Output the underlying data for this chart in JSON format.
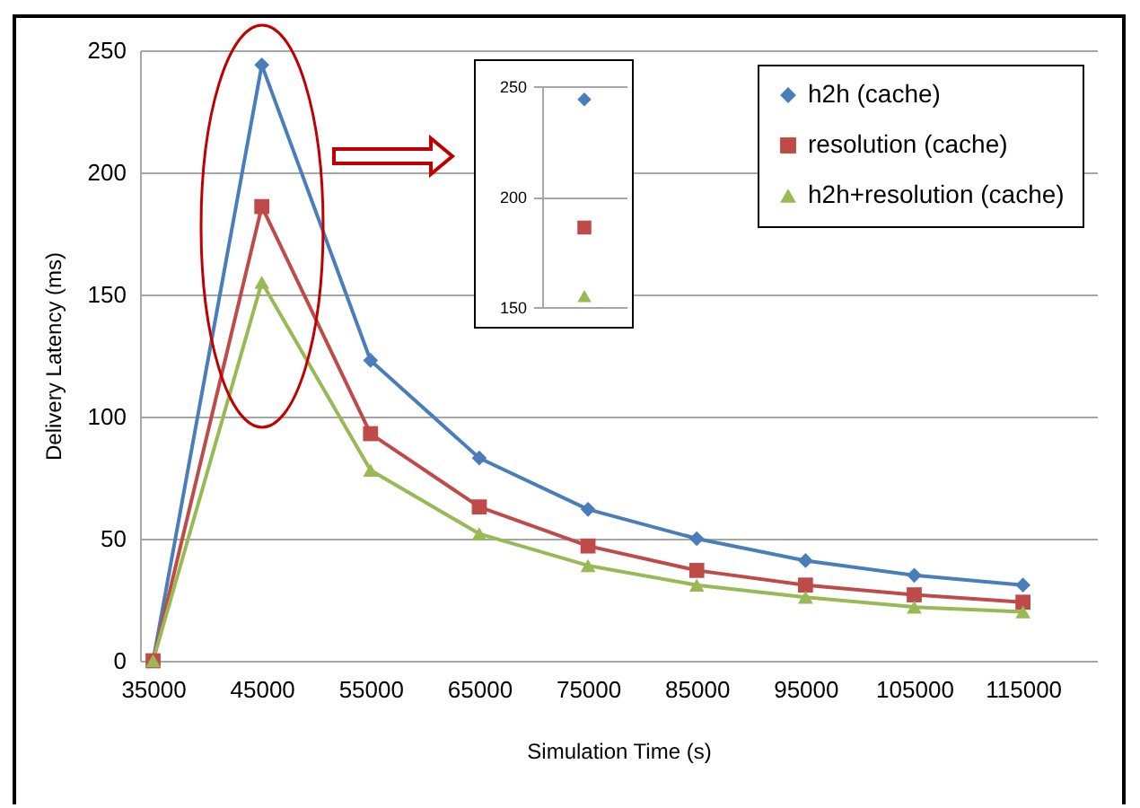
{
  "chart_data": [
    {
      "type": "line",
      "xlabel": "Simulation Time (s)",
      "ylabel": "Delivery Latency (ms)",
      "x": [
        35000,
        45000,
        55000,
        65000,
        75000,
        85000,
        95000,
        105000,
        115000
      ],
      "series": [
        {
          "name": "h2h (cache)",
          "color": "#4a7ebb",
          "marker": "diamond",
          "values": [
            0,
            244,
            123,
            83,
            62,
            50,
            41,
            35,
            31
          ]
        },
        {
          "name": "resolution (cache)",
          "color": "#be4b48",
          "marker": "square",
          "values": [
            0,
            186,
            93,
            63,
            47,
            37,
            31,
            27,
            24
          ]
        },
        {
          "name": "h2h+resolution (cache)",
          "color": "#98b954",
          "marker": "triangle",
          "values": [
            0,
            155,
            78,
            52,
            39,
            31,
            26,
            22,
            20
          ]
        }
      ],
      "xlim": [
        33800,
        121800
      ],
      "xticks": [
        35000,
        45000,
        55000,
        65000,
        75000,
        85000,
        95000,
        105000,
        115000
      ],
      "ylim": [
        0,
        250
      ],
      "yticks": [
        0,
        50,
        100,
        150,
        200,
        250
      ],
      "grid": "y",
      "legend": "top right"
    },
    {
      "type": "scatter",
      "categories": [
        null
      ],
      "series": [
        {
          "color": "#4a7ebb",
          "marker": "diamond",
          "values": [
            244
          ]
        },
        {
          "color": "#be4b48",
          "marker": "square",
          "values": [
            186
          ]
        },
        {
          "color": "#98b954",
          "marker": "triangle",
          "values": [
            155
          ]
        }
      ],
      "ylim": [
        150,
        250
      ],
      "yticks": [
        150,
        200,
        250
      ],
      "grid": "y",
      "tick_labels": "y"
    }
  ]
}
